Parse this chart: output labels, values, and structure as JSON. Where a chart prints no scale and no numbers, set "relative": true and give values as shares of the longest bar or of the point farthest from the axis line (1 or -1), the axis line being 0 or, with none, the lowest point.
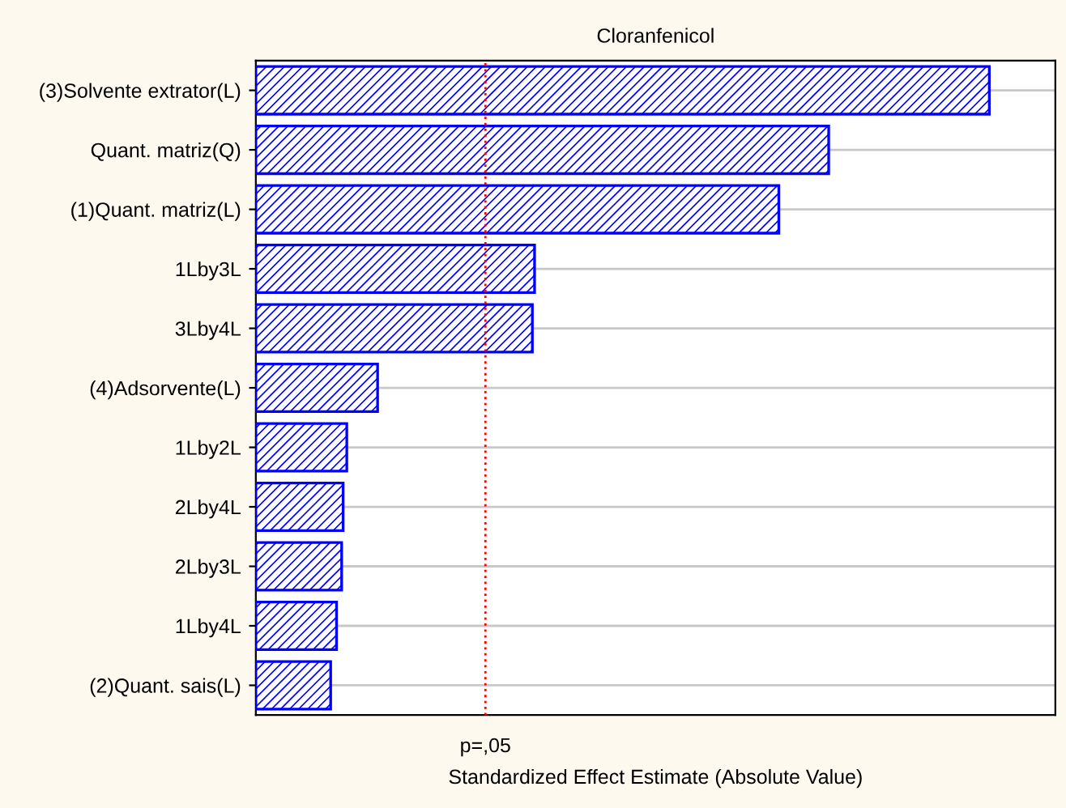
{
  "chart_data": {
    "type": "bar",
    "orientation": "horizontal",
    "relative": true,
    "title": "Cloranfenicol",
    "xlabel": "Standardized Effect Estimate (Absolute Value)",
    "categories": [
      "(3)Solvente extrator(L)",
      "Quant. matriz(Q)",
      "(1)Quant. matriz(L)",
      "1Lby3L",
      "3Lby4L",
      "(4)Adsorvente(L)",
      "1Lby2L",
      "2Lby4L",
      "2Lby3L",
      "1Lby4L",
      "(2)Quant. sais(L)"
    ],
    "values": [
      1,
      0.781,
      0.713,
      0.38,
      0.377,
      0.166,
      0.124,
      0.119,
      0.117,
      0.11,
      0.102
    ],
    "color": "#0000ff",
    "grid": "y",
    "legend": false,
    "ref_lines": [
      {
        "axis": "x",
        "value": 0.313,
        "label": "p=,05",
        "color": "#ff0000",
        "line_style": "dotted"
      }
    ]
  }
}
